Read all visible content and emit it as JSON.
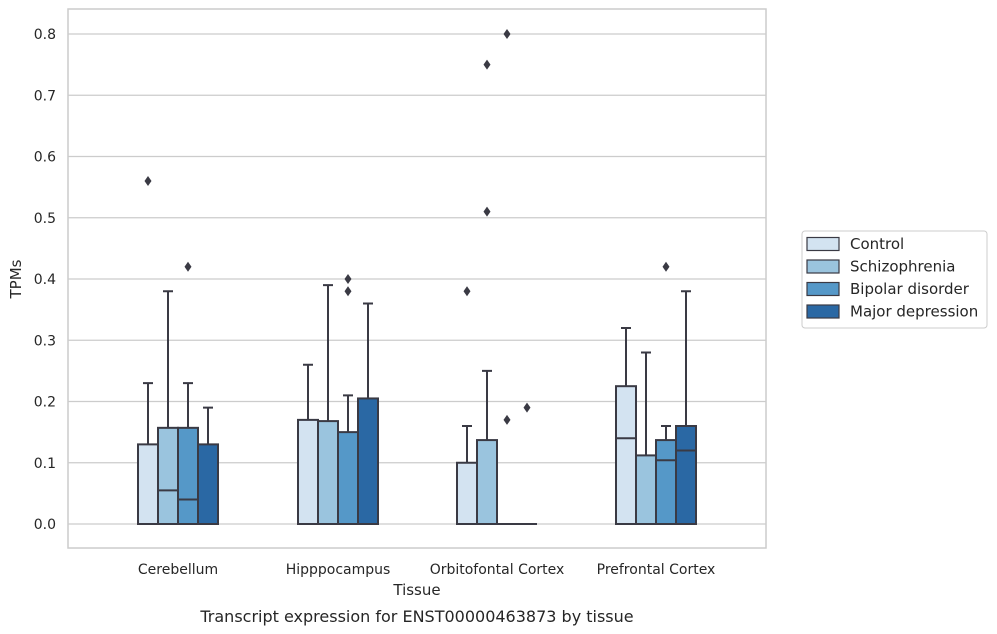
{
  "chart_data": {
    "type": "box",
    "xlabel": "Tissue",
    "ylabel": "TPMs",
    "caption": "Transcript expression for ENST00000463873 by tissue",
    "ylim": [
      -0.04,
      0.84
    ],
    "yticks": [
      "0.0",
      "0.1",
      "0.2",
      "0.3",
      "0.4",
      "0.5",
      "0.6",
      "0.7",
      "0.8"
    ],
    "grid": true,
    "legend_position": "right",
    "categories": [
      "Cerebellum",
      "Hipppocampus",
      "Orbitofontal Cortex",
      "Prefrontal Cortex"
    ],
    "series": [
      {
        "name": "Control",
        "color": "#d3e3f1",
        "boxes": [
          {
            "min": 0,
            "q1": 0,
            "median": 0,
            "q3": 0.13,
            "max": 0.23,
            "outliers": [
              0.56
            ]
          },
          {
            "min": 0,
            "q1": 0,
            "median": 0,
            "q3": 0.17,
            "max": 0.26,
            "outliers": []
          },
          {
            "min": 0,
            "q1": 0,
            "median": 0,
            "q3": 0.1,
            "max": 0.16,
            "outliers": [
              0.38
            ]
          },
          {
            "min": 0,
            "q1": 0,
            "median": 0.14,
            "q3": 0.225,
            "max": 0.32,
            "outliers": []
          }
        ]
      },
      {
        "name": "Schizophrenia",
        "color": "#9ac4de",
        "boxes": [
          {
            "min": 0,
            "q1": 0,
            "median": 0.055,
            "q3": 0.157,
            "max": 0.38,
            "outliers": []
          },
          {
            "min": 0,
            "q1": 0,
            "median": 0,
            "q3": 0.168,
            "max": 0.39,
            "outliers": []
          },
          {
            "min": 0,
            "q1": 0,
            "median": 0,
            "q3": 0.137,
            "max": 0.25,
            "outliers": [
              0.51,
              0.75
            ]
          },
          {
            "min": 0,
            "q1": 0,
            "median": 0,
            "q3": 0.112,
            "max": 0.28,
            "outliers": []
          }
        ]
      },
      {
        "name": "Bipolar disorder",
        "color": "#5598c8",
        "boxes": [
          {
            "min": 0,
            "q1": 0,
            "median": 0.04,
            "q3": 0.157,
            "max": 0.23,
            "outliers": [
              0.42
            ]
          },
          {
            "min": 0,
            "q1": 0,
            "median": 0,
            "q3": 0.15,
            "max": 0.21,
            "outliers": [
              0.38,
              0.4
            ]
          },
          {
            "min": 0,
            "q1": 0,
            "median": 0,
            "q3": 0,
            "max": 0,
            "outliers": [
              0.17,
              0.8
            ]
          },
          {
            "min": 0,
            "q1": 0,
            "median": 0.104,
            "q3": 0.137,
            "max": 0.16,
            "outliers": [
              0.42
            ]
          }
        ]
      },
      {
        "name": "Major depression",
        "color": "#2a68a4",
        "boxes": [
          {
            "min": 0,
            "q1": 0,
            "median": 0,
            "q3": 0.13,
            "max": 0.19,
            "outliers": []
          },
          {
            "min": 0,
            "q1": 0,
            "median": 0,
            "q3": 0.205,
            "max": 0.36,
            "outliers": []
          },
          {
            "min": 0,
            "q1": 0,
            "median": 0,
            "q3": 0,
            "max": 0,
            "outliers": [
              0.19
            ]
          },
          {
            "min": 0,
            "q1": 0,
            "median": 0.12,
            "q3": 0.16,
            "max": 0.38,
            "outliers": []
          }
        ]
      }
    ]
  }
}
